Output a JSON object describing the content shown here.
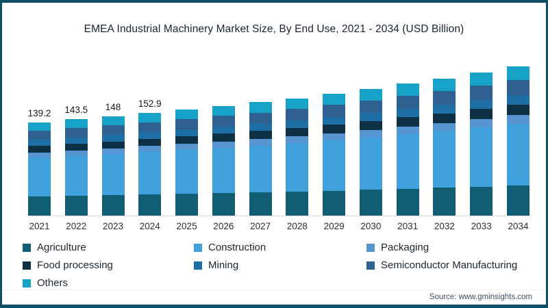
{
  "frame": {
    "border_color": "#0d4f66",
    "background": "#ffffff"
  },
  "title": "EMEA Industrial Machinery Market Size, By End Use, 2021 - 2034 (USD Billion)",
  "source_note": "Source: www.gminsights.com",
  "chart_data": {
    "type": "bar",
    "stacked": true,
    "title": "EMEA Industrial Machinery Market Size, By End Use, 2021 - 2034 (USD Billion)",
    "unit": "USD Billion",
    "legend_position": "bottom",
    "grid": false,
    "y_axis_visible": false,
    "ylim": [
      0,
      240
    ],
    "categories": [
      "2021",
      "2022",
      "2023",
      "2024",
      "2025",
      "2026",
      "2027",
      "2028",
      "2029",
      "2030",
      "2031",
      "2032",
      "2033",
      "2034"
    ],
    "series": [
      {
        "name": "Agriculture",
        "color": "#115d74",
        "values": [
          28.5,
          29.4,
          30.3,
          31.3,
          32.3,
          33.4,
          34.5,
          35.7,
          37.0,
          38.4,
          40.0,
          41.6,
          43.3,
          45.2
        ]
      },
      {
        "name": "Construction",
        "color": "#41a1dc",
        "values": [
          57.8,
          59.6,
          61.4,
          63.4,
          65.5,
          67.7,
          70.0,
          72.5,
          75.2,
          78.1,
          81.4,
          84.7,
          88.2,
          92.0
        ]
      },
      {
        "name": "Packaging",
        "color": "#5795d0",
        "values": [
          8.1,
          8.3,
          8.6,
          8.9,
          9.2,
          9.5,
          9.8,
          10.1,
          10.5,
          10.9,
          11.4,
          11.9,
          12.4,
          12.9
        ]
      },
      {
        "name": "Food processing",
        "color": "#0e3044",
        "values": [
          9.7,
          10.0,
          10.3,
          10.7,
          11.0,
          11.4,
          11.8,
          12.2,
          12.7,
          13.2,
          13.8,
          14.3,
          14.9,
          15.6
        ]
      },
      {
        "name": "Mining",
        "color": "#1d6fa6",
        "values": [
          8.9,
          9.2,
          9.5,
          9.8,
          10.1,
          10.5,
          10.8,
          11.2,
          11.6,
          12.1,
          12.6,
          13.1,
          13.7,
          14.3
        ]
      },
      {
        "name": "Semiconductor Manufacturing",
        "color": "#2e6090",
        "values": [
          13.6,
          14.0,
          14.5,
          15.0,
          15.6,
          16.1,
          16.7,
          17.3,
          18.0,
          18.7,
          19.5,
          20.4,
          21.2,
          22.1
        ]
      },
      {
        "name": "Others",
        "color": "#17a3c8",
        "values": [
          12.6,
          13.0,
          13.4,
          13.8,
          14.4,
          14.8,
          15.4,
          16.0,
          16.5,
          17.1,
          17.8,
          18.5,
          19.3,
          20.1
        ]
      }
    ],
    "totals": [
      139.2,
      143.5,
      148.0,
      152.9,
      158.1,
      163.4,
      169.0,
      175.0,
      181.5,
      188.5,
      196.5,
      204.5,
      213.0,
      222.2
    ],
    "data_labels": [
      "139.2",
      "143.5",
      "148",
      "152.9",
      "",
      "",
      "",
      "",
      "",
      "",
      "",
      "",
      "",
      ""
    ]
  }
}
